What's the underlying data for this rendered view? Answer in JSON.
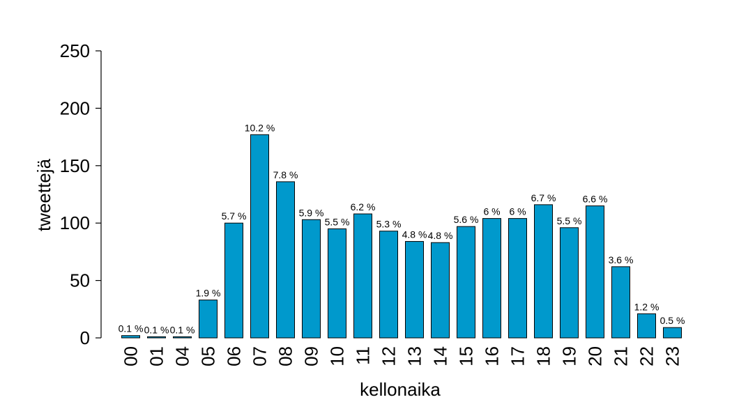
{
  "chart_data": {
    "type": "bar",
    "categories": [
      "00",
      "01",
      "04",
      "05",
      "06",
      "07",
      "08",
      "09",
      "10",
      "11",
      "12",
      "13",
      "14",
      "15",
      "16",
      "17",
      "18",
      "19",
      "20",
      "21",
      "22",
      "23"
    ],
    "values": [
      2,
      1,
      1,
      33,
      100,
      177,
      136,
      103,
      95,
      108,
      93,
      84,
      83,
      97,
      104,
      104,
      116,
      96,
      115,
      62,
      21,
      9
    ],
    "data_labels": [
      "0.1 %",
      "0.1 %",
      "0.1 %",
      "1.9 %",
      "5.7 %",
      "10.2 %",
      "7.8 %",
      "5.9 %",
      "5.5 %",
      "6.2 %",
      "5.3 %",
      "4.8 %",
      "4.8 %",
      "5.6 %",
      "6 %",
      "6 %",
      "6.7 %",
      "5.5 %",
      "6.6 %",
      "3.6 %",
      "1.2 %",
      "0.5 %"
    ],
    "xlabel": "kellonaika",
    "ylabel": "tweettejä",
    "ylim": [
      0,
      250
    ],
    "yticks": [
      "0",
      "50",
      "100",
      "150",
      "200",
      "250"
    ],
    "ytick_values": [
      0,
      50,
      100,
      150,
      200,
      250
    ],
    "bar_color": "#0099cc",
    "grid": false,
    "legend": false
  }
}
